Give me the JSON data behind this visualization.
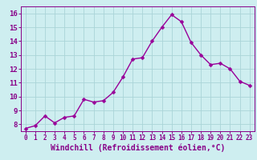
{
  "x": [
    0,
    1,
    2,
    3,
    4,
    5,
    6,
    7,
    8,
    9,
    10,
    11,
    12,
    13,
    14,
    15,
    16,
    17,
    18,
    19,
    20,
    21,
    22,
    23
  ],
  "y": [
    7.7,
    7.9,
    8.6,
    8.1,
    8.5,
    8.6,
    9.8,
    9.6,
    9.7,
    10.3,
    11.4,
    12.7,
    12.8,
    14.0,
    15.0,
    15.9,
    15.4,
    13.9,
    13.0,
    12.3,
    12.4,
    12.0,
    11.1,
    10.8
  ],
  "line_color": "#990099",
  "marker": "D",
  "marker_size": 2.5,
  "bg_color": "#ceeef0",
  "grid_color": "#aad4d8",
  "xlabel": "Windchill (Refroidissement éolien,°C)",
  "ylabel": "",
  "xlim": [
    -0.5,
    23.5
  ],
  "ylim": [
    7.5,
    16.5
  ],
  "yticks": [
    8,
    9,
    10,
    11,
    12,
    13,
    14,
    15,
    16
  ],
  "xticks": [
    0,
    1,
    2,
    3,
    4,
    5,
    6,
    7,
    8,
    9,
    10,
    11,
    12,
    13,
    14,
    15,
    16,
    17,
    18,
    19,
    20,
    21,
    22,
    23
  ],
  "tick_color": "#880088",
  "xlabel_color": "#880088",
  "xlabel_fontsize": 7,
  "ytick_fontsize": 6.5,
  "xtick_fontsize": 5.5,
  "line_width": 1.0
}
